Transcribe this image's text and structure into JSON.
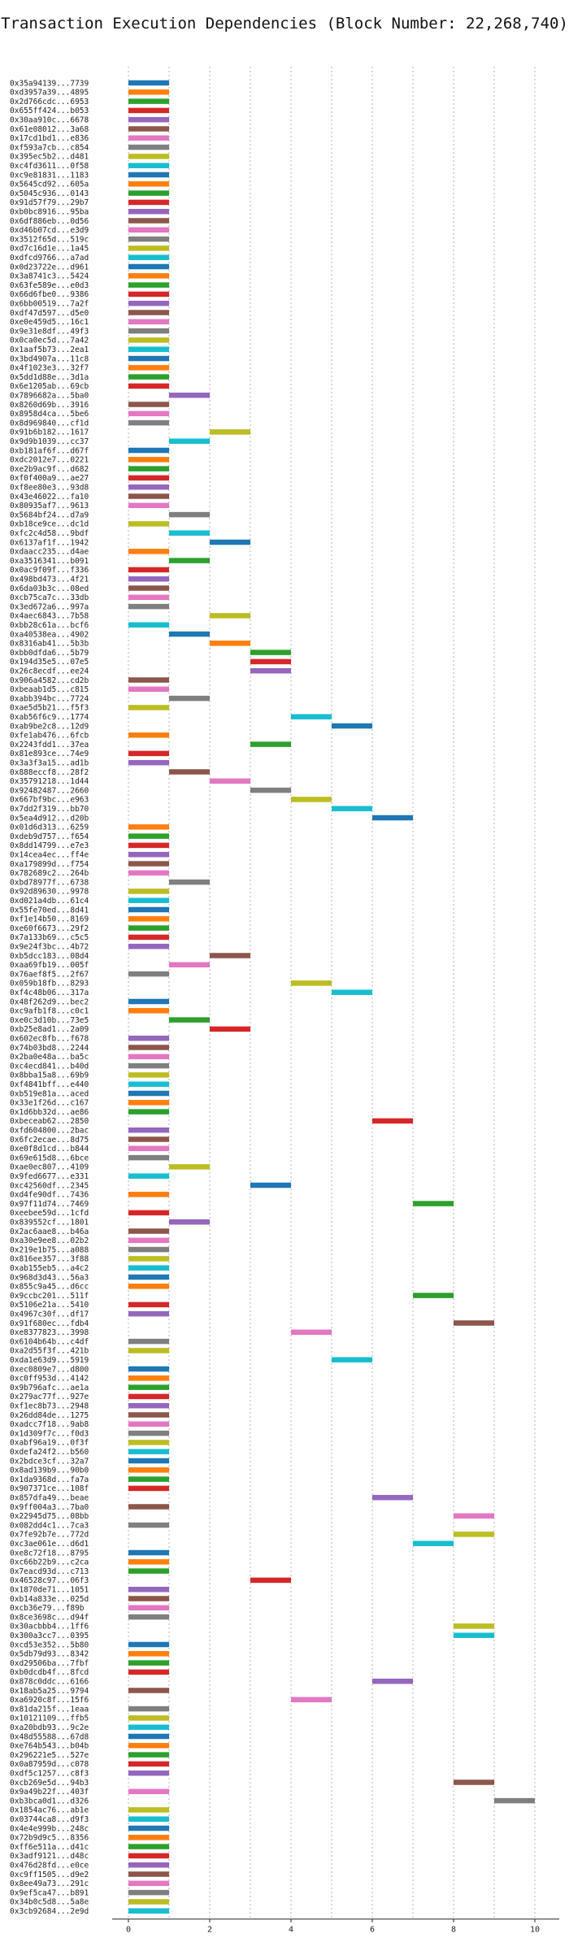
{
  "chart_data": {
    "type": "bar",
    "orientation": "horizontal",
    "title": "Transaction Execution Dependencies (Block Number: 22,268,740)",
    "xlabel": "",
    "ylabel": "",
    "xlim": [
      -0.4,
      10.6
    ],
    "xticks": [
      0,
      2,
      4,
      6,
      8,
      10
    ],
    "grid": true,
    "legend": "none",
    "bar_width_units": 1,
    "colors": [
      "#1f77b4",
      "#ff7f0e",
      "#2ca02c",
      "#d62728",
      "#9467bd",
      "#8c564b",
      "#e377c2",
      "#7f7f7f",
      "#bcbd22",
      "#17becf"
    ],
    "transactions": [
      {
        "label": "0x35a94139...7739",
        "start": 0
      },
      {
        "label": "0xd3957a39...4895",
        "start": 0
      },
      {
        "label": "0x2d766cdc...6953",
        "start": 0
      },
      {
        "label": "0x655ff424...b053",
        "start": 0
      },
      {
        "label": "0x30aa910c...6678",
        "start": 0
      },
      {
        "label": "0x61e08012...3a68",
        "start": 0
      },
      {
        "label": "0x17cd1bd1...e836",
        "start": 0
      },
      {
        "label": "0xf593a7cb...c854",
        "start": 0
      },
      {
        "label": "0x395ec5b2...d481",
        "start": 0
      },
      {
        "label": "0xc4fd3611...0f58",
        "start": 0
      },
      {
        "label": "0xc9e81831...1183",
        "start": 0
      },
      {
        "label": "0x5645cd92...605a",
        "start": 0
      },
      {
        "label": "0x5045c936...0143",
        "start": 0
      },
      {
        "label": "0x91d57f79...29b7",
        "start": 0
      },
      {
        "label": "0xb0bc8916...95ba",
        "start": 0
      },
      {
        "label": "0x6df886eb...0d56",
        "start": 0
      },
      {
        "label": "0xd46b07cd...e3d9",
        "start": 0
      },
      {
        "label": "0x3512f65d...519c",
        "start": 0
      },
      {
        "label": "0xd7c16d1e...1a45",
        "start": 0
      },
      {
        "label": "0xdfcd9766...a7ad",
        "start": 0
      },
      {
        "label": "0x0d23722e...d961",
        "start": 0
      },
      {
        "label": "0x3a8741c3...5424",
        "start": 0
      },
      {
        "label": "0x63fe589e...e0d3",
        "start": 0
      },
      {
        "label": "0x66d6fbe0...9386",
        "start": 0
      },
      {
        "label": "0x6bb00519...7a2f",
        "start": 0
      },
      {
        "label": "0xdf47d597...d5e0",
        "start": 0
      },
      {
        "label": "0xe0e459d5...16c1",
        "start": 0
      },
      {
        "label": "0x9e31e8df...49f3",
        "start": 0
      },
      {
        "label": "0x0ca0ec5d...7a42",
        "start": 0
      },
      {
        "label": "0x1aaf5b73...2ea1",
        "start": 0
      },
      {
        "label": "0x3bd4907a...11c8",
        "start": 0
      },
      {
        "label": "0x4f1023e3...32f7",
        "start": 0
      },
      {
        "label": "0x5dd1d88e...3d1a",
        "start": 0
      },
      {
        "label": "0x6e1205ab...69cb",
        "start": 0
      },
      {
        "label": "0x7896682a...5ba0",
        "start": 1
      },
      {
        "label": "0x8260d69b...3916",
        "start": 0
      },
      {
        "label": "0x8958d4ca...5be6",
        "start": 0
      },
      {
        "label": "0x8d969840...cf1d",
        "start": 0
      },
      {
        "label": "0x91b6b182...1617",
        "start": 2
      },
      {
        "label": "0x9d9b1039...cc37",
        "start": 1
      },
      {
        "label": "0xb181af6f...d67f",
        "start": 0
      },
      {
        "label": "0xdc2012e7...0221",
        "start": 0
      },
      {
        "label": "0xe2b9ac9f...d682",
        "start": 0
      },
      {
        "label": "0xf0f400a9...ae27",
        "start": 0
      },
      {
        "label": "0xf8ee80e3...93d8",
        "start": 0
      },
      {
        "label": "0x43e46022...fa10",
        "start": 0
      },
      {
        "label": "0x80935af7...9613",
        "start": 0
      },
      {
        "label": "0x5684bf24...d7a9",
        "start": 1
      },
      {
        "label": "0xb18ce9ce...dc1d",
        "start": 0
      },
      {
        "label": "0xfc2c4d58...9bdf",
        "start": 1
      },
      {
        "label": "0x6137af1f...1942",
        "start": 2
      },
      {
        "label": "0xdaacc235...d4ae",
        "start": 0
      },
      {
        "label": "0xa3516341...b091",
        "start": 1
      },
      {
        "label": "0x0ac9f09f...f336",
        "start": 0
      },
      {
        "label": "0x498bd473...4f21",
        "start": 0
      },
      {
        "label": "0x6da03b3c...08ed",
        "start": 0
      },
      {
        "label": "0xcb75ca7c...33db",
        "start": 0
      },
      {
        "label": "0x3ed672a6...997a",
        "start": 0
      },
      {
        "label": "0x4aec6843...7b58",
        "start": 2
      },
      {
        "label": "0xbb28c61a...bcf6",
        "start": 0
      },
      {
        "label": "0xa40538ea...4902",
        "start": 1
      },
      {
        "label": "0x8316ab41...5b3b",
        "start": 2
      },
      {
        "label": "0xbb0dfda6...5b79",
        "start": 3
      },
      {
        "label": "0x194d35e5...07e5",
        "start": 3
      },
      {
        "label": "0x26c8ecdf...ee24",
        "start": 3
      },
      {
        "label": "0x906a4582...cd2b",
        "start": 0
      },
      {
        "label": "0xbeaab1d5...c815",
        "start": 0
      },
      {
        "label": "0xabb394bc...7724",
        "start": 1
      },
      {
        "label": "0xae5d5b21...f5f3",
        "start": 0
      },
      {
        "label": "0xab56f6c9...1774",
        "start": 4
      },
      {
        "label": "0xab9be2c8...12d9",
        "start": 5
      },
      {
        "label": "0xfe1ab476...6fcb",
        "start": 0
      },
      {
        "label": "0x2243fdd1...37ea",
        "start": 3
      },
      {
        "label": "0x81e893ce...74e9",
        "start": 0
      },
      {
        "label": "0x3a3f3a15...ad1b",
        "start": 0
      },
      {
        "label": "0x888eccf8...28f2",
        "start": 1
      },
      {
        "label": "0x35791218...1d44",
        "start": 2
      },
      {
        "label": "0x92482487...2660",
        "start": 3
      },
      {
        "label": "0x667bf9bc...e963",
        "start": 4
      },
      {
        "label": "0x7dd2f319...bb70",
        "start": 5
      },
      {
        "label": "0x5ea4d912...d20b",
        "start": 6
      },
      {
        "label": "0x01d6d313...6259",
        "start": 0
      },
      {
        "label": "0xdeb9d757...f654",
        "start": 0
      },
      {
        "label": "0x8dd14799...e7e3",
        "start": 0
      },
      {
        "label": "0x14cea4ec...ff4e",
        "start": 0
      },
      {
        "label": "0xa179899d...f754",
        "start": 0
      },
      {
        "label": "0x782689c2...264b",
        "start": 0
      },
      {
        "label": "0xbd78977f...6738",
        "start": 1
      },
      {
        "label": "0x92d89630...9978",
        "start": 0
      },
      {
        "label": "0xd021a4db...61c4",
        "start": 0
      },
      {
        "label": "0x55fe70ed...8d41",
        "start": 0
      },
      {
        "label": "0xf1e14b50...8169",
        "start": 0
      },
      {
        "label": "0xe60f6673...29f2",
        "start": 0
      },
      {
        "label": "0x7a133b69...c5c5",
        "start": 0
      },
      {
        "label": "0x9e24f3bc...4b72",
        "start": 0
      },
      {
        "label": "0xb5dcc183...08d4",
        "start": 2
      },
      {
        "label": "0xaa69fb19...005f",
        "start": 1
      },
      {
        "label": "0x76aef8f5...2f67",
        "start": 0
      },
      {
        "label": "0x059b18fb...8293",
        "start": 4
      },
      {
        "label": "0xf4c48b06...317a",
        "start": 5
      },
      {
        "label": "0x48f262d9...bec2",
        "start": 0
      },
      {
        "label": "0xc9afb1f8...c0c1",
        "start": 0
      },
      {
        "label": "0xe0c3d10b...73e5",
        "start": 1
      },
      {
        "label": "0xb25e8ad1...2a09",
        "start": 2
      },
      {
        "label": "0x602ec8fb...f678",
        "start": 0
      },
      {
        "label": "0x74b03bd8...2244",
        "start": 0
      },
      {
        "label": "0x2ba0e48a...ba5c",
        "start": 0
      },
      {
        "label": "0xc4ecd841...b40d",
        "start": 0
      },
      {
        "label": "0x8bba15a8...69b9",
        "start": 0
      },
      {
        "label": "0xf4841bff...e440",
        "start": 0
      },
      {
        "label": "0xb519e81a...aced",
        "start": 0
      },
      {
        "label": "0x33e1f26d...c167",
        "start": 0
      },
      {
        "label": "0x1d6bb32d...ae86",
        "start": 0
      },
      {
        "label": "0xbeceab62...2850",
        "start": 6
      },
      {
        "label": "0xfd604800...2bac",
        "start": 0
      },
      {
        "label": "0x6fc2ecae...8d75",
        "start": 0
      },
      {
        "label": "0xe0f8d1cd...b844",
        "start": 0
      },
      {
        "label": "0x69e615d8...6bce",
        "start": 0
      },
      {
        "label": "0xae0ec807...4109",
        "start": 1
      },
      {
        "label": "0x9fed6677...e331",
        "start": 0
      },
      {
        "label": "0xc42560df...2345",
        "start": 3
      },
      {
        "label": "0xd4fe90df...7436",
        "start": 0
      },
      {
        "label": "0x97f11d74...7469",
        "start": 7
      },
      {
        "label": "0xeebee59d...1cfd",
        "start": 0
      },
      {
        "label": "0x839552cf...1801",
        "start": 1
      },
      {
        "label": "0x2ac6aae8...b46a",
        "start": 0
      },
      {
        "label": "0xa30e9ee8...02b2",
        "start": 0
      },
      {
        "label": "0x219e1b75...a088",
        "start": 0
      },
      {
        "label": "0x816ee357...3f88",
        "start": 0
      },
      {
        "label": "0xab155eb5...a4c2",
        "start": 0
      },
      {
        "label": "0x968d3d43...56a3",
        "start": 0
      },
      {
        "label": "0x855c9a45...d6cc",
        "start": 0
      },
      {
        "label": "0x9ccbc201...511f",
        "start": 7
      },
      {
        "label": "0x5106e21a...5410",
        "start": 0
      },
      {
        "label": "0x4967c30f...df17",
        "start": 0
      },
      {
        "label": "0x91f680ec...fdb4",
        "start": 8
      },
      {
        "label": "0xe8377823...3998",
        "start": 4
      },
      {
        "label": "0x6104b64b...c4df",
        "start": 0
      },
      {
        "label": "0xa2d55f3f...421b",
        "start": 0
      },
      {
        "label": "0xda1e63d9...5919",
        "start": 5
      },
      {
        "label": "0xec0809e7...d800",
        "start": 0
      },
      {
        "label": "0xc0ff953d...4142",
        "start": 0
      },
      {
        "label": "0x9b796afc...ae1a",
        "start": 0
      },
      {
        "label": "0x279ac77f...927e",
        "start": 0
      },
      {
        "label": "0xf1ec8b73...2948",
        "start": 0
      },
      {
        "label": "0x26dd84de...1275",
        "start": 0
      },
      {
        "label": "0xadcc7f18...9ab8",
        "start": 0
      },
      {
        "label": "0x1d309f7c...f0d3",
        "start": 0
      },
      {
        "label": "0xabf96a19...0f3f",
        "start": 0
      },
      {
        "label": "0xdefa24f2...b560",
        "start": 0
      },
      {
        "label": "0x2bdce3cf...32a7",
        "start": 0
      },
      {
        "label": "0x8ad139b9...90b0",
        "start": 0
      },
      {
        "label": "0x1da9368d...fa7a",
        "start": 0
      },
      {
        "label": "0x907371ce...108f",
        "start": 0
      },
      {
        "label": "0x857dfa49...beae",
        "start": 6
      },
      {
        "label": "0x9ff004a3...7ba0",
        "start": 0
      },
      {
        "label": "0x22945d75...08bb",
        "start": 8
      },
      {
        "label": "0x082dd4c1...7ca3",
        "start": 0
      },
      {
        "label": "0x7fe92b7e...772d",
        "start": 8
      },
      {
        "label": "0xc3ae061e...d6d1",
        "start": 7
      },
      {
        "label": "0xe8c72f18...8795",
        "start": 0
      },
      {
        "label": "0xc66b22b9...c2ca",
        "start": 0
      },
      {
        "label": "0x7eacd93d...c713",
        "start": 0
      },
      {
        "label": "0x46528c97...06f3",
        "start": 3
      },
      {
        "label": "0x1870de71...1051",
        "start": 0
      },
      {
        "label": "0xb14a833e...025d",
        "start": 0
      },
      {
        "label": "0xcb36e79...f89b",
        "start": 0
      },
      {
        "label": "0x8ce3698c...d94f",
        "start": 0
      },
      {
        "label": "0x30acbbb4...1ff6",
        "start": 8
      },
      {
        "label": "0x300a3cc7...0395",
        "start": 8
      },
      {
        "label": "0xcd53e352...5b80",
        "start": 0
      },
      {
        "label": "0x5db79d93...8342",
        "start": 0
      },
      {
        "label": "0xd29506ba...7fbf",
        "start": 0
      },
      {
        "label": "0xb0dcdb4f...8fcd",
        "start": 0
      },
      {
        "label": "0x878c0ddc...6166",
        "start": 6
      },
      {
        "label": "0x18ab5a25...9794",
        "start": 0
      },
      {
        "label": "0xa6920c8f...15f6",
        "start": 4
      },
      {
        "label": "0x81da215f...1eaa",
        "start": 0
      },
      {
        "label": "0x10121109...ffb5",
        "start": 0
      },
      {
        "label": "0xa20bdb93...9c2e",
        "start": 0
      },
      {
        "label": "0x48d55588...67d8",
        "start": 0
      },
      {
        "label": "0xe764b543...b04b",
        "start": 0
      },
      {
        "label": "0x296221e5...527e",
        "start": 0
      },
      {
        "label": "0x0a87959d...c078",
        "start": 0
      },
      {
        "label": "0xdf5c1257...c8f3",
        "start": 0
      },
      {
        "label": "0xcb269e5d...94b3",
        "start": 8
      },
      {
        "label": "0x9a49b22f...403f",
        "start": 0
      },
      {
        "label": "0xb3bca0d1...d326",
        "start": 9
      },
      {
        "label": "0x1854ac76...ab1e",
        "start": 0
      },
      {
        "label": "0x03744ca8...d9f3",
        "start": 0
      },
      {
        "label": "0x4e4e999b...248c",
        "start": 0
      },
      {
        "label": "0x72b9d9c5...8356",
        "start": 0
      },
      {
        "label": "0xff6e511a...d41c",
        "start": 0
      },
      {
        "label": "0x3adf9121...d48c",
        "start": 0
      },
      {
        "label": "0x476d28fd...e0ce",
        "start": 0
      },
      {
        "label": "0xc9ff1505...d9e2",
        "start": 0
      },
      {
        "label": "0x8ee49a73...291c",
        "start": 0
      },
      {
        "label": "0x9ef5ca47...b891",
        "start": 0
      },
      {
        "label": "0x34b0c5d8...5a8e",
        "start": 0
      },
      {
        "label": "0x3cb92684...2e9d",
        "start": 0
      }
    ]
  }
}
